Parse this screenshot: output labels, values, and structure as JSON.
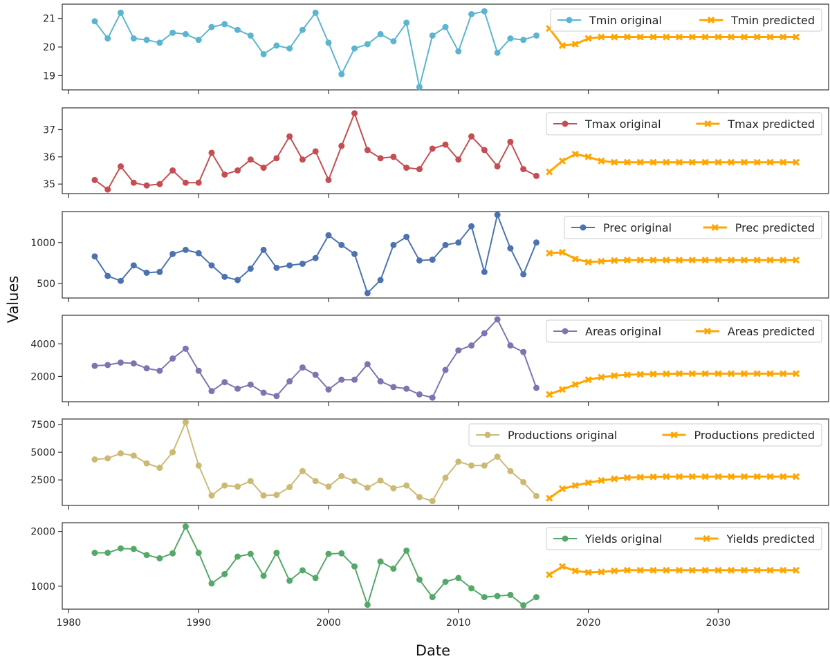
{
  "xlabel": "Date",
  "ylabel": "Values",
  "chart_data": [
    {
      "type": "line",
      "ylim": [
        18.5,
        21.5
      ],
      "yticks": [
        19,
        20,
        21
      ],
      "xlim": [
        1979.5,
        2038.5
      ],
      "xticks": [
        1980,
        1990,
        2000,
        2010,
        2020,
        2030
      ],
      "series": [
        {
          "name": "Tmin original",
          "color": "#5bb5d0",
          "marker": "circle",
          "x": [
            1982,
            1983,
            1984,
            1985,
            1986,
            1987,
            1988,
            1989,
            1990,
            1991,
            1992,
            1993,
            1994,
            1995,
            1996,
            1997,
            1998,
            1999,
            2000,
            2001,
            2002,
            2003,
            2004,
            2005,
            2006,
            2007,
            2008,
            2009,
            2010,
            2011,
            2012,
            2013,
            2014,
            2015,
            2016
          ],
          "y": [
            20.9,
            20.3,
            21.2,
            20.3,
            20.25,
            20.15,
            20.5,
            20.45,
            20.25,
            20.7,
            20.8,
            20.6,
            20.4,
            19.75,
            20.05,
            19.95,
            20.6,
            21.2,
            20.15,
            19.05,
            19.95,
            20.1,
            20.45,
            20.2,
            20.85,
            18.6,
            20.4,
            20.7,
            19.85,
            21.15,
            21.25,
            19.8,
            20.3,
            20.25,
            20.4
          ]
        },
        {
          "name": "Tmin predicted",
          "color": "#ffa500",
          "marker": "x",
          "x": [
            2017,
            2018,
            2019,
            2020,
            2021,
            2022,
            2023,
            2024,
            2025,
            2026,
            2027,
            2028,
            2029,
            2030,
            2031,
            2032,
            2033,
            2034,
            2035,
            2036
          ],
          "y": [
            20.65,
            20.05,
            20.1,
            20.3,
            20.35,
            20.35,
            20.35,
            20.35,
            20.35,
            20.35,
            20.35,
            20.35,
            20.35,
            20.35,
            20.35,
            20.35,
            20.35,
            20.35,
            20.35,
            20.35
          ]
        }
      ]
    },
    {
      "type": "line",
      "ylim": [
        34.65,
        37.8
      ],
      "yticks": [
        35,
        36,
        37
      ],
      "xlim": [
        1979.5,
        2038.5
      ],
      "xticks": [
        1980,
        1990,
        2000,
        2010,
        2020,
        2030
      ],
      "series": [
        {
          "name": "Tmax original",
          "color": "#c44e52",
          "marker": "circle",
          "x": [
            1982,
            1983,
            1984,
            1985,
            1986,
            1987,
            1988,
            1989,
            1990,
            1991,
            1992,
            1993,
            1994,
            1995,
            1996,
            1997,
            1998,
            1999,
            2000,
            2001,
            2002,
            2003,
            2004,
            2005,
            2006,
            2007,
            2008,
            2009,
            2010,
            2011,
            2012,
            2013,
            2014,
            2015,
            2016
          ],
          "y": [
            35.15,
            34.8,
            35.65,
            35.05,
            34.95,
            35.0,
            35.5,
            35.05,
            35.05,
            36.15,
            35.35,
            35.5,
            35.9,
            35.6,
            35.95,
            36.75,
            35.9,
            36.2,
            35.15,
            36.4,
            37.6,
            36.25,
            35.95,
            36.0,
            35.6,
            35.55,
            36.3,
            36.45,
            35.9,
            36.75,
            36.25,
            35.65,
            36.55,
            35.55,
            35.3
          ]
        },
        {
          "name": "Tmax predicted",
          "color": "#ffa500",
          "marker": "x",
          "x": [
            2017,
            2018,
            2019,
            2020,
            2021,
            2022,
            2023,
            2024,
            2025,
            2026,
            2027,
            2028,
            2029,
            2030,
            2031,
            2032,
            2033,
            2034,
            2035,
            2036
          ],
          "y": [
            35.45,
            35.85,
            36.1,
            36.0,
            35.85,
            35.8,
            35.8,
            35.8,
            35.8,
            35.8,
            35.8,
            35.8,
            35.8,
            35.8,
            35.8,
            35.8,
            35.8,
            35.8,
            35.8,
            35.8
          ]
        }
      ]
    },
    {
      "type": "line",
      "ylim": [
        320,
        1380
      ],
      "yticks": [
        500,
        1000
      ],
      "xlim": [
        1979.5,
        2038.5
      ],
      "xticks": [
        1980,
        1990,
        2000,
        2010,
        2020,
        2030
      ],
      "series": [
        {
          "name": "Prec original",
          "color": "#4c72b0",
          "marker": "circle",
          "x": [
            1982,
            1983,
            1984,
            1985,
            1986,
            1987,
            1988,
            1989,
            1990,
            1991,
            1992,
            1993,
            1994,
            1995,
            1996,
            1997,
            1998,
            1999,
            2000,
            2001,
            2002,
            2003,
            2004,
            2005,
            2006,
            2007,
            2008,
            2009,
            2010,
            2011,
            2012,
            2013,
            2014,
            2015,
            2016
          ],
          "y": [
            830,
            590,
            530,
            720,
            630,
            640,
            860,
            910,
            870,
            720,
            580,
            540,
            680,
            910,
            690,
            720,
            740,
            810,
            1090,
            970,
            860,
            380,
            540,
            970,
            1070,
            780,
            790,
            970,
            1000,
            1200,
            640,
            1340,
            930,
            610,
            1000
          ]
        },
        {
          "name": "Prec predicted",
          "color": "#ffa500",
          "marker": "x",
          "x": [
            2017,
            2018,
            2019,
            2020,
            2021,
            2022,
            2023,
            2024,
            2025,
            2026,
            2027,
            2028,
            2029,
            2030,
            2031,
            2032,
            2033,
            2034,
            2035,
            2036
          ],
          "y": [
            870,
            880,
            800,
            760,
            770,
            780,
            785,
            785,
            785,
            785,
            785,
            785,
            785,
            785,
            785,
            785,
            785,
            785,
            785,
            785
          ]
        }
      ]
    },
    {
      "type": "line",
      "ylim": [
        450,
        5750
      ],
      "yticks": [
        2000,
        4000
      ],
      "xlim": [
        1979.5,
        2038.5
      ],
      "xticks": [
        1980,
        1990,
        2000,
        2010,
        2020,
        2030
      ],
      "series": [
        {
          "name": "Areas original",
          "color": "#8172b2",
          "marker": "circle",
          "x": [
            1982,
            1983,
            1984,
            1985,
            1986,
            1987,
            1988,
            1989,
            1990,
            1991,
            1992,
            1993,
            1994,
            1995,
            1996,
            1997,
            1998,
            1999,
            2000,
            2001,
            2002,
            2003,
            2004,
            2005,
            2006,
            2007,
            2008,
            2009,
            2010,
            2011,
            2012,
            2013,
            2014,
            2015,
            2016
          ],
          "y": [
            2650,
            2700,
            2850,
            2800,
            2500,
            2350,
            3100,
            3700,
            2350,
            1100,
            1650,
            1250,
            1500,
            1000,
            800,
            1700,
            2550,
            2100,
            1200,
            1800,
            1800,
            2750,
            1700,
            1350,
            1250,
            900,
            700,
            2400,
            3600,
            3900,
            4650,
            5500,
            3900,
            3500,
            1300
          ]
        },
        {
          "name": "Areas predicted",
          "color": "#ffa500",
          "marker": "x",
          "x": [
            2017,
            2018,
            2019,
            2020,
            2021,
            2022,
            2023,
            2024,
            2025,
            2026,
            2027,
            2028,
            2029,
            2030,
            2031,
            2032,
            2033,
            2034,
            2035,
            2036
          ],
          "y": [
            900,
            1200,
            1500,
            1800,
            1950,
            2050,
            2100,
            2130,
            2150,
            2160,
            2170,
            2170,
            2170,
            2170,
            2170,
            2170,
            2170,
            2170,
            2170,
            2170
          ]
        }
      ]
    },
    {
      "type": "line",
      "ylim": [
        200,
        8000
      ],
      "yticks": [
        2500,
        5000,
        7500
      ],
      "xlim": [
        1979.5,
        2038.5
      ],
      "xticks": [
        1980,
        1990,
        2000,
        2010,
        2020,
        2030
      ],
      "series": [
        {
          "name": "Productions original",
          "color": "#ccb974",
          "marker": "circle",
          "x": [
            1982,
            1983,
            1984,
            1985,
            1986,
            1987,
            1988,
            1989,
            1990,
            1991,
            1992,
            1993,
            1994,
            1995,
            1996,
            1997,
            1998,
            1999,
            2000,
            2001,
            2002,
            2003,
            2004,
            2005,
            2006,
            2007,
            2008,
            2009,
            2010,
            2011,
            2012,
            2013,
            2014,
            2015,
            2016
          ],
          "y": [
            4350,
            4450,
            4900,
            4700,
            4000,
            3600,
            5000,
            7700,
            3800,
            1100,
            2000,
            1900,
            2400,
            1100,
            1150,
            1850,
            3300,
            2400,
            1900,
            2850,
            2400,
            1800,
            2450,
            1750,
            2000,
            950,
            600,
            2700,
            4150,
            3800,
            3800,
            4600,
            3300,
            2300,
            1050
          ]
        },
        {
          "name": "Productions predicted",
          "color": "#ffa500",
          "marker": "x",
          "x": [
            2017,
            2018,
            2019,
            2020,
            2021,
            2022,
            2023,
            2024,
            2025,
            2026,
            2027,
            2028,
            2029,
            2030,
            2031,
            2032,
            2033,
            2034,
            2035,
            2036
          ],
          "y": [
            850,
            1700,
            2000,
            2250,
            2450,
            2600,
            2700,
            2750,
            2780,
            2800,
            2800,
            2800,
            2800,
            2800,
            2800,
            2800,
            2800,
            2800,
            2800,
            2800
          ]
        }
      ]
    },
    {
      "type": "line",
      "ylim": [
        580,
        2160
      ],
      "yticks": [
        1000,
        2000
      ],
      "xlim": [
        1979.5,
        2038.5
      ],
      "xticks": [
        1980,
        1990,
        2000,
        2010,
        2020,
        2030
      ],
      "series": [
        {
          "name": "Yields original",
          "color": "#55a868",
          "marker": "circle",
          "x": [
            1982,
            1983,
            1984,
            1985,
            1986,
            1987,
            1988,
            1989,
            1990,
            1991,
            1992,
            1993,
            1994,
            1995,
            1996,
            1997,
            1998,
            1999,
            2000,
            2001,
            2002,
            2003,
            2004,
            2005,
            2006,
            2007,
            2008,
            2009,
            2010,
            2011,
            2012,
            2013,
            2014,
            2015,
            2016
          ],
          "y": [
            1610,
            1610,
            1690,
            1680,
            1570,
            1510,
            1600,
            2090,
            1610,
            1050,
            1220,
            1540,
            1590,
            1190,
            1610,
            1100,
            1290,
            1150,
            1590,
            1600,
            1360,
            660,
            1450,
            1320,
            1650,
            1120,
            800,
            1080,
            1150,
            960,
            800,
            820,
            840,
            650,
            800
          ]
        },
        {
          "name": "Yields predicted",
          "color": "#ffa500",
          "marker": "x",
          "x": [
            2017,
            2018,
            2019,
            2020,
            2021,
            2022,
            2023,
            2024,
            2025,
            2026,
            2027,
            2028,
            2029,
            2030,
            2031,
            2032,
            2033,
            2034,
            2035,
            2036
          ],
          "y": [
            1210,
            1360,
            1280,
            1250,
            1260,
            1280,
            1290,
            1290,
            1290,
            1290,
            1290,
            1290,
            1290,
            1290,
            1290,
            1290,
            1290,
            1290,
            1290,
            1290
          ]
        }
      ]
    }
  ]
}
